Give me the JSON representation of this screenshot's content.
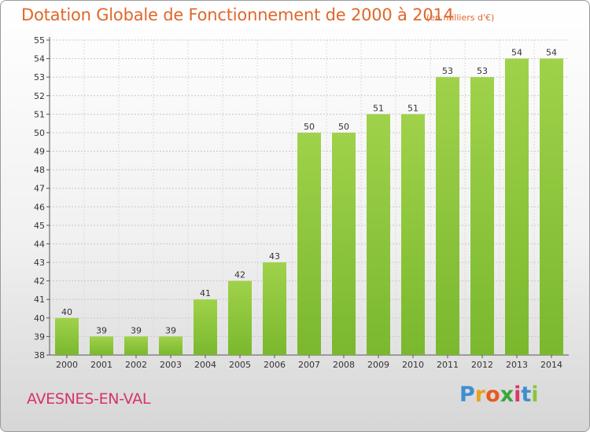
{
  "header": {
    "title": "Dotation Globale de Fonctionnement de 2000 à 2014",
    "unit": "(en milliers d'€)"
  },
  "footer": {
    "city": "AVESNES-EN-VAL",
    "logo_letters": [
      "P",
      "r",
      "o",
      "x",
      "i",
      "t",
      "i"
    ],
    "logo_colors": [
      "#3d8fd1",
      "#e8a21e",
      "#e85a1e",
      "#3aa63a",
      "#d63a6b",
      "#3d8fd1",
      "#8bc43a"
    ]
  },
  "chart_data": {
    "type": "bar",
    "categories": [
      "2000",
      "2001",
      "2002",
      "2003",
      "2004",
      "2005",
      "2006",
      "2007",
      "2008",
      "2009",
      "2010",
      "2011",
      "2012",
      "2013",
      "2014"
    ],
    "values": [
      40,
      39,
      39,
      39,
      41,
      42,
      43,
      50,
      50,
      51,
      51,
      53,
      53,
      54,
      54
    ],
    "title": "Dotation Globale de Fonctionnement de 2000 à 2014",
    "ylim": [
      38,
      55
    ],
    "yticks": [
      38,
      39,
      40,
      41,
      42,
      43,
      44,
      45,
      46,
      47,
      48,
      49,
      50,
      51,
      52,
      53,
      54,
      55
    ],
    "grid": true,
    "bar_color": "#7ab82e",
    "bar_color_light": "#9fd24a"
  }
}
